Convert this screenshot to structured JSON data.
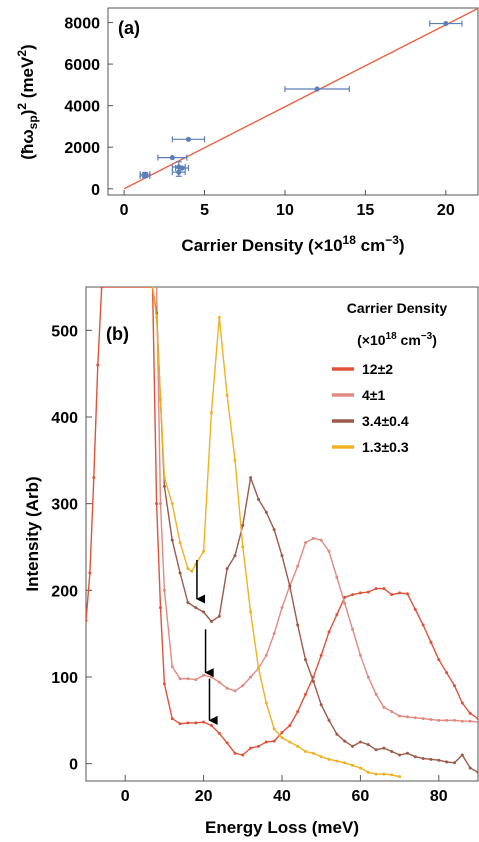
{
  "chart_data": [
    {
      "type": "scatter",
      "panel_label": "(a)",
      "xlabel": {
        "main": "Carrier Density (×10",
        "exp": "18",
        "mid": " cm",
        "exp2": "−3",
        "end": ")"
      },
      "ylabel": {
        "pre": "(ħω",
        "sub": "sp",
        "post": ")",
        "exp": "2",
        "unit": " (meV",
        "exp2": "2",
        "end": ")"
      },
      "xlim": [
        -1,
        22
      ],
      "ylim": [
        -300,
        8700
      ],
      "xticks": [
        0,
        5,
        10,
        15,
        20
      ],
      "yticks": [
        0,
        2000,
        4000,
        6000,
        8000
      ],
      "grid": false,
      "colors": {
        "points": "#5b7fb8",
        "fit": "#e8654a"
      },
      "points": [
        {
          "x": 1.3,
          "y": 700,
          "xerr": 0.3,
          "yerr": 80
        },
        {
          "x": 1.3,
          "y": 620,
          "xerr": 0.3,
          "yerr": 80
        },
        {
          "x": 3.0,
          "y": 1500,
          "xerr": 0.9,
          "yerr": 0
        },
        {
          "x": 3.4,
          "y": 1050,
          "xerr": 0.4,
          "yerr": 250
        },
        {
          "x": 3.4,
          "y": 800,
          "xerr": 0.4,
          "yerr": 200
        },
        {
          "x": 3.6,
          "y": 1000,
          "xerr": 0.4,
          "yerr": 0
        },
        {
          "x": 4.0,
          "y": 2380,
          "xerr": 1.0,
          "yerr": 0
        },
        {
          "x": 12.0,
          "y": 4800,
          "xerr": 2.0,
          "yerr": 0
        },
        {
          "x": 20.0,
          "y": 7950,
          "xerr": 1.0,
          "yerr": 0
        }
      ],
      "fit": {
        "x": [
          0,
          22
        ],
        "y": [
          0,
          8680
        ]
      }
    },
    {
      "type": "line",
      "panel_label": "(b)",
      "xlabel": "Energy Loss (meV)",
      "ylabel": "Intensity (Arb)",
      "xlim": [
        -10,
        90
      ],
      "ylim": [
        -20,
        550
      ],
      "xticks": [
        0,
        20,
        40,
        60,
        80
      ],
      "yticks": [
        0,
        100,
        200,
        300,
        400,
        500
      ],
      "grid": false,
      "legend": {
        "title_line1": "Carrier Density",
        "title_line2": {
          "pre": "(×10",
          "exp": "18",
          "mid": " cm",
          "exp2": "−3",
          "end": ")"
        },
        "position": "top-right"
      },
      "series": [
        {
          "name": "12±2",
          "color": "#e0533a",
          "x": [
            -10,
            -9,
            -8,
            -7,
            -6,
            7,
            8,
            9,
            10,
            12,
            14,
            16,
            18,
            20,
            22,
            24,
            26,
            28,
            30,
            32,
            34,
            36,
            38,
            40,
            42,
            44,
            46,
            48,
            50,
            52,
            54,
            56,
            58,
            60,
            62,
            64,
            66,
            68,
            70,
            72,
            74,
            76,
            78,
            80,
            82,
            84,
            86,
            88,
            90
          ],
          "y": [
            165,
            220,
            330,
            460,
            550,
            550,
            300,
            180,
            92,
            52,
            46,
            47,
            47,
            48,
            44,
            35,
            24,
            12,
            10,
            18,
            20,
            25,
            26,
            36,
            44,
            60,
            80,
            100,
            125,
            152,
            172,
            192,
            195,
            197,
            198,
            202,
            202,
            195,
            197,
            196,
            178,
            160,
            140,
            120,
            105,
            90,
            70,
            58,
            52
          ]
        },
        {
          "name": "4±1",
          "color": "#e08a82",
          "x": [
            8,
            9,
            10,
            12,
            14,
            16,
            18,
            20,
            22,
            24,
            26,
            28,
            30,
            32,
            34,
            36,
            38,
            40,
            42,
            44,
            46,
            48,
            50,
            52,
            54,
            56,
            58,
            60,
            62,
            64,
            66,
            68,
            70,
            72,
            74,
            76,
            78,
            80,
            82,
            84,
            86,
            88,
            90
          ],
          "y": [
            550,
            300,
            200,
            112,
            98,
            98,
            97,
            102,
            100,
            94,
            87,
            84,
            90,
            100,
            110,
            125,
            150,
            180,
            205,
            228,
            255,
            260,
            258,
            245,
            215,
            185,
            155,
            125,
            100,
            80,
            65,
            60,
            55,
            54,
            53,
            52,
            51,
            50,
            50,
            50,
            49,
            49,
            48
          ]
        },
        {
          "name": "3.4±0.4",
          "color": "#9c5a4a",
          "x": [
            7,
            8,
            9,
            10,
            12,
            14,
            16,
            18,
            20,
            22,
            24,
            26,
            28,
            30,
            32,
            34,
            36,
            38,
            40,
            42,
            44,
            46,
            48,
            50,
            52,
            54,
            56,
            58,
            60,
            62,
            64,
            66,
            68,
            70,
            72,
            74,
            76,
            78,
            80,
            82,
            84,
            86,
            88,
            90
          ],
          "y": [
            550,
            520,
            420,
            320,
            258,
            220,
            186,
            180,
            175,
            164,
            170,
            225,
            240,
            275,
            330,
            305,
            290,
            270,
            240,
            205,
            160,
            120,
            95,
            68,
            50,
            34,
            26,
            20,
            25,
            22,
            16,
            18,
            14,
            10,
            12,
            8,
            6,
            5,
            4,
            2,
            1,
            10,
            -5,
            -10
          ]
        },
        {
          "name": "1.3±0.3",
          "color": "#f0b222",
          "x": [
            7,
            8,
            9,
            10,
            12,
            14,
            16,
            17,
            18,
            20,
            22,
            24,
            26,
            28,
            30,
            32,
            34,
            36,
            38,
            40,
            42,
            44,
            46,
            48,
            50,
            52,
            54,
            56,
            58,
            60,
            62,
            64,
            66,
            68,
            70
          ],
          "y": [
            550,
            515,
            420,
            330,
            300,
            255,
            225,
            222,
            230,
            245,
            405,
            515,
            425,
            350,
            250,
            175,
            110,
            70,
            40,
            30,
            25,
            20,
            14,
            12,
            8,
            5,
            3,
            1,
            -2,
            -5,
            -10,
            -12,
            -12,
            -13,
            -15
          ]
        }
      ],
      "arrows": [
        {
          "x": 18.3,
          "y1": 235,
          "y2": 190
        },
        {
          "x": 20.5,
          "y1": 155,
          "y2": 105
        },
        {
          "x": 21.5,
          "y1": 98,
          "y2": 50
        }
      ]
    }
  ]
}
